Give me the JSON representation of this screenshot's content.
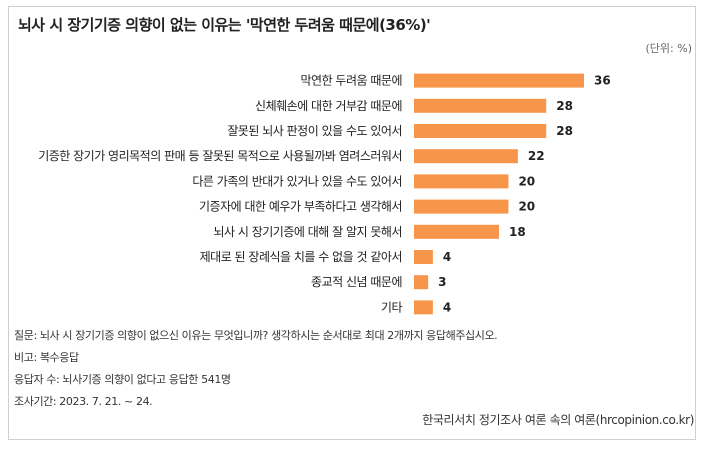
{
  "title": "뇌사 시 장기기증 의향이 없는 이유는 '막연한 두려움 때문에(36%)'",
  "unit": "(단위: %)",
  "bar_color": "#f7964a",
  "chart_data": {
    "type": "bar",
    "orientation": "horizontal",
    "categories": [
      "막연한 두려움 때문에",
      "신체훼손에 대한 거부감 때문에",
      "잘못된 뇌사 판정이 있을 수도 있어서",
      "기증한 장기가 영리목적의 판매 등 잘못된 목적으로 사용될까봐 염려스러워서",
      "다른 가족의 반대가 있거나 있을 수도 있어서",
      "기증자에 대한 예우가 부족하다고 생각해서",
      "뇌사 시 장기기증에 대해 잘 알지 못해서",
      "제대로 된 장례식을 치를 수 없을 것 같아서",
      "종교적 신념 때문에",
      "기타"
    ],
    "values": [
      36,
      28,
      28,
      22,
      20,
      20,
      18,
      4,
      3,
      4
    ],
    "xlim": [
      0,
      40
    ],
    "grid": false,
    "legend": "none"
  },
  "notes": {
    "question": "질문: 뇌사 시 장기기증 의향이 없으신 이유는 무엇입니까? 생각하시는 순서대로 최대 2개까지 응답해주십시오.",
    "remark": "비고: 복수응답",
    "respondents": "응답자 수: 뇌사기증 의향이 없다고 응답한 541명",
    "period": "조사기간: 2023. 7. 21. ~ 24."
  },
  "source": "한국리서치 정기조사 여론 속의 여론(hrcopinion.co.kr)"
}
